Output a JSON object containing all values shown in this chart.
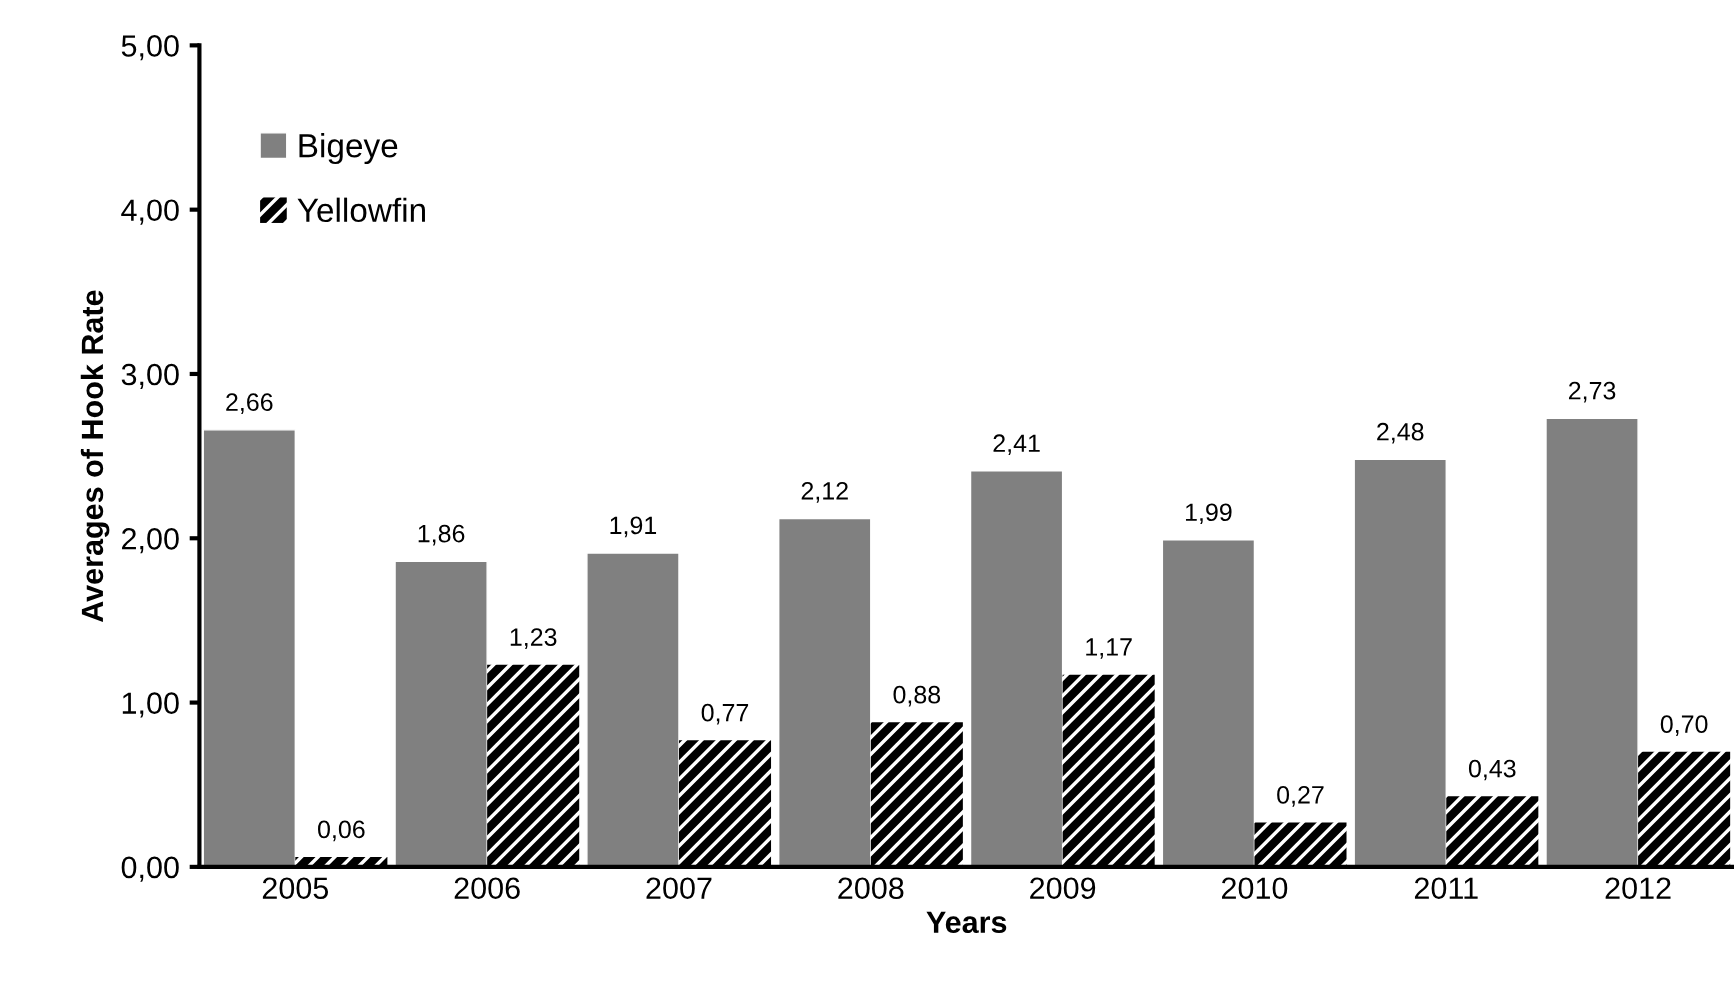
{
  "chart_data": {
    "type": "bar",
    "xlabel": "Years",
    "ylabel": "Averages of Hook Rate",
    "categories": [
      "2005",
      "2006",
      "2007",
      "2008",
      "2009",
      "2010",
      "2011",
      "2012"
    ],
    "series": [
      {
        "name": "Bigeye",
        "color": "#808080",
        "values": [
          2.66,
          1.86,
          1.91,
          2.12,
          2.41,
          1.99,
          2.48,
          2.73
        ],
        "value_labels": [
          "2,66",
          "1,86",
          "1,91",
          "2,12",
          "2,41",
          "1,99",
          "2,48",
          "2,73"
        ]
      },
      {
        "name": "Yellowfin",
        "color": "#000000",
        "values": [
          0.06,
          1.23,
          0.77,
          0.88,
          1.17,
          0.27,
          0.43,
          0.7
        ],
        "value_labels": [
          "0,06",
          "1,23",
          "0,77",
          "0,88",
          "1,17",
          "0,27",
          "0,43",
          "0,70"
        ]
      }
    ],
    "ylim": [
      0,
      5
    ],
    "yticks": [
      {
        "value": 0,
        "label": "0,00"
      },
      {
        "value": 1,
        "label": "1,00"
      },
      {
        "value": 2,
        "label": "2,00"
      },
      {
        "value": 3,
        "label": "3,00"
      },
      {
        "value": 4,
        "label": "4,00"
      },
      {
        "value": 5,
        "label": "5,00"
      }
    ],
    "grid": false,
    "legend": "top left"
  }
}
